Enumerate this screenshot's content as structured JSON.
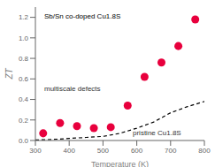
{
  "chart_data": {
    "type": "scatter",
    "xlabel": "Temperature (K)",
    "ylabel": "ZT",
    "xlim": [
      300,
      800
    ],
    "ylim": [
      0,
      1.3
    ],
    "xticks": [
      300,
      400,
      500,
      600,
      700,
      800
    ],
    "yticks": [
      {
        "value": 0,
        "label": "0.0"
      },
      0.2,
      0.4,
      0.6,
      0.8,
      {
        "value": 1,
        "label": "1.0"
      },
      1.2
    ],
    "grid": false,
    "series": [
      {
        "type": "scatter",
        "color": "#e8003d",
        "marker": "circle",
        "x": [
          323,
          373,
          423,
          473,
          523,
          573,
          623,
          673,
          723,
          773
        ],
        "values": [
          0.07,
          0.17,
          0.14,
          0.12,
          0.13,
          0.34,
          0.62,
          0.76,
          0.92,
          1.18
        ]
      },
      {
        "type": "line",
        "color": "#000000",
        "line_style": "dashed",
        "x": [
          300,
          350,
          400,
          450,
          500,
          550,
          600,
          650,
          700,
          750,
          800
        ],
        "values": [
          0.005,
          0.01,
          0.02,
          0.03,
          0.04,
          0.07,
          0.12,
          0.18,
          0.27,
          0.33,
          0.38
        ]
      }
    ],
    "annotations": [
      "Sb/Sn co-doped Cu1.8S",
      "multiscale defects",
      "pristine Cu1.8S"
    ]
  }
}
